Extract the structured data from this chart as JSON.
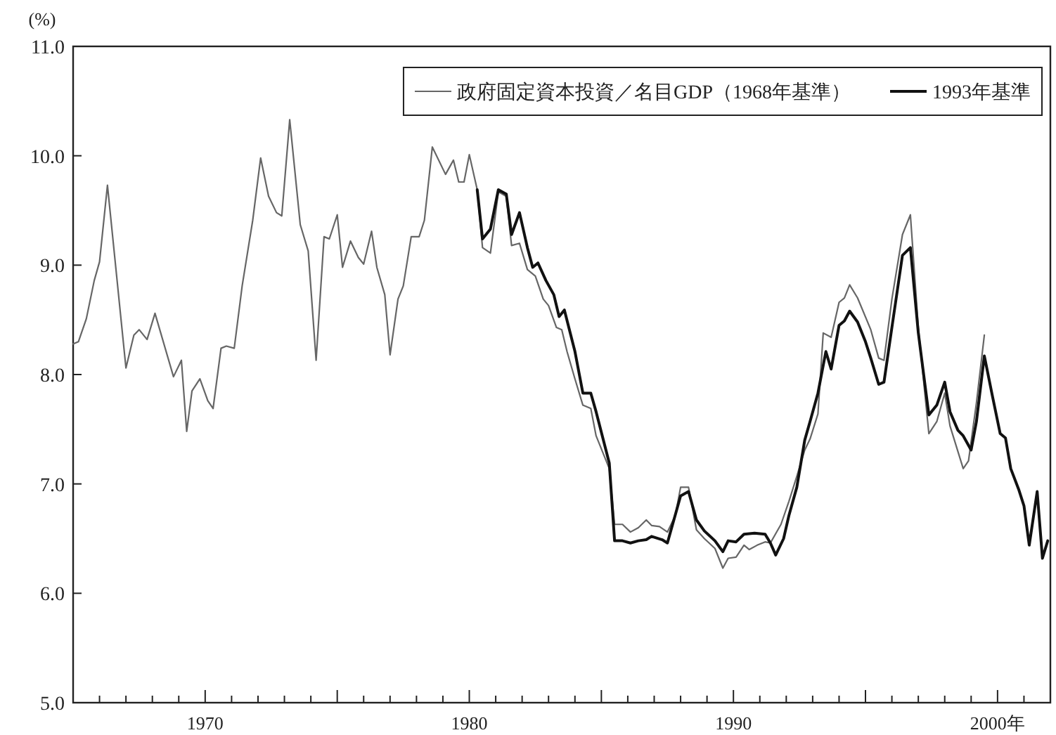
{
  "chart_data": {
    "type": "line",
    "ylabel": "(%)",
    "xlim": [
      1965,
      2002
    ],
    "ylim": [
      5,
      11
    ],
    "xticks": [
      {
        "value": 1966,
        "label": null
      },
      {
        "value": 1967,
        "label": null
      },
      {
        "value": 1968,
        "label": null
      },
      {
        "value": 1969,
        "label": null
      },
      1970,
      {
        "value": 1971,
        "label": null
      },
      {
        "value": 1972,
        "label": null
      },
      {
        "value": 1973,
        "label": null
      },
      {
        "value": 1974,
        "label": null
      },
      {
        "value": 1975,
        "label": null
      },
      {
        "value": 1976,
        "label": null
      },
      {
        "value": 1977,
        "label": null
      },
      {
        "value": 1978,
        "label": null
      },
      {
        "value": 1979,
        "label": null
      },
      1980,
      {
        "value": 1981,
        "label": null
      },
      {
        "value": 1982,
        "label": null
      },
      {
        "value": 1983,
        "label": null
      },
      {
        "value": 1984,
        "label": null
      },
      {
        "value": 1985,
        "label": null
      },
      {
        "value": 1986,
        "label": null
      },
      {
        "value": 1987,
        "label": null
      },
      {
        "value": 1988,
        "label": null
      },
      {
        "value": 1989,
        "label": null
      },
      1990,
      {
        "value": 1991,
        "label": null
      },
      {
        "value": 1992,
        "label": null
      },
      {
        "value": 1993,
        "label": null
      },
      {
        "value": 1994,
        "label": null
      },
      {
        "value": 1995,
        "label": null
      },
      {
        "value": 1996,
        "label": null
      },
      {
        "value": 1997,
        "label": null
      },
      {
        "value": 1998,
        "label": null
      },
      {
        "value": 1999,
        "label": null
      },
      {
        "value": 2000,
        "label": "2000年"
      },
      {
        "value": 2001,
        "label": null
      }
    ],
    "yticks": [
      {
        "value": 5,
        "label": "5.0"
      },
      {
        "value": 6,
        "label": "6.0"
      },
      {
        "value": 7,
        "label": "7.0"
      },
      {
        "value": 8,
        "label": "8.0"
      },
      {
        "value": 9,
        "label": "9.0"
      },
      {
        "value": 10,
        "label": "10.0"
      },
      {
        "value": 11,
        "label": "11.0"
      }
    ],
    "legend": "top right",
    "grid": false,
    "marker": "none",
    "line_style": "solid",
    "series": [
      {
        "name": "政府固定資本投資／名目GDP（1968年基準）",
        "color": "#666666",
        "x": [
          1965.0,
          1965.2,
          1965.5,
          1965.8,
          1966.0,
          1966.3,
          1967.0,
          1967.3,
          1967.5,
          1967.8,
          1968.1,
          1968.8,
          1969.1,
          1969.3,
          1969.5,
          1969.8,
          1970.1,
          1970.3,
          1970.6,
          1970.8,
          1971.1,
          1971.4,
          1971.8,
          1972.1,
          1972.4,
          1972.7,
          1972.9,
          1973.2,
          1973.6,
          1973.9,
          1974.2,
          1974.5,
          1974.7,
          1975.0,
          1975.2,
          1975.5,
          1975.8,
          1976.0,
          1976.3,
          1976.5,
          1976.8,
          1977.0,
          1977.3,
          1977.5,
          1977.8,
          1978.1,
          1978.3,
          1978.6,
          1979.1,
          1979.4,
          1979.6,
          1979.8,
          1980.0,
          1980.3,
          1980.5,
          1980.8,
          1981.1,
          1981.4,
          1981.6,
          1981.9,
          1982.2,
          1982.5,
          1982.8,
          1983.0,
          1983.3,
          1983.5,
          1983.7,
          1984.0,
          1984.3,
          1984.6,
          1984.8,
          1985.3,
          1985.5,
          1985.8,
          1986.1,
          1986.4,
          1986.7,
          1986.9,
          1987.2,
          1987.5,
          1987.8,
          1988.0,
          1988.3,
          1988.6,
          1988.9,
          1989.3,
          1989.6,
          1989.8,
          1990.1,
          1990.4,
          1990.6,
          1990.9,
          1991.2,
          1991.4,
          1991.8,
          1992.1,
          1992.4,
          1992.7,
          1992.9,
          1993.2,
          1993.4,
          1993.7,
          1994.0,
          1994.2,
          1994.4,
          1994.7,
          1995.2,
          1995.5,
          1995.7,
          1996.0,
          1996.4,
          1996.7,
          1997.0,
          1997.4,
          1997.7,
          1998.0,
          1998.2,
          1998.7,
          1998.9,
          1999.2,
          1999.5
        ],
        "values": [
          8.28,
          8.3,
          8.51,
          8.86,
          9.03,
          9.73,
          8.06,
          8.36,
          8.41,
          8.32,
          8.56,
          7.98,
          8.13,
          7.48,
          7.85,
          7.96,
          7.76,
          7.69,
          8.24,
          8.26,
          8.24,
          8.81,
          9.41,
          9.98,
          9.63,
          9.48,
          9.45,
          10.33,
          9.37,
          9.13,
          8.13,
          9.26,
          9.24,
          9.46,
          8.98,
          9.22,
          9.07,
          9.01,
          9.31,
          8.98,
          8.73,
          8.18,
          8.69,
          8.81,
          9.26,
          9.26,
          9.41,
          10.08,
          9.83,
          9.96,
          9.76,
          9.76,
          10.01,
          9.69,
          9.16,
          9.11,
          9.67,
          9.63,
          9.18,
          9.2,
          8.96,
          8.9,
          8.69,
          8.63,
          8.43,
          8.41,
          8.21,
          7.96,
          7.72,
          7.69,
          7.44,
          7.14,
          6.63,
          6.63,
          6.56,
          6.6,
          6.67,
          6.62,
          6.61,
          6.56,
          6.71,
          6.97,
          6.97,
          6.58,
          6.5,
          6.41,
          6.23,
          6.32,
          6.33,
          6.44,
          6.4,
          6.44,
          6.47,
          6.46,
          6.63,
          6.84,
          7.07,
          7.31,
          7.41,
          7.64,
          8.38,
          8.34,
          8.66,
          8.7,
          8.82,
          8.7,
          8.41,
          8.15,
          8.13,
          8.69,
          9.28,
          9.46,
          8.43,
          7.46,
          7.57,
          7.83,
          7.53,
          7.14,
          7.21,
          7.74,
          8.36
        ]
      },
      {
        "name": "1993年基準",
        "color": "#111111",
        "x": [
          1980.3,
          1980.5,
          1980.8,
          1981.1,
          1981.4,
          1981.6,
          1981.9,
          1982.2,
          1982.4,
          1982.6,
          1982.9,
          1983.2,
          1983.4,
          1983.6,
          1984.0,
          1984.3,
          1984.6,
          1984.8,
          1985.3,
          1985.5,
          1985.8,
          1986.1,
          1986.4,
          1986.7,
          1986.9,
          1987.3,
          1987.5,
          1988.0,
          1988.3,
          1988.6,
          1988.9,
          1989.3,
          1989.6,
          1989.8,
          1990.1,
          1990.4,
          1990.8,
          1991.2,
          1991.4,
          1991.6,
          1991.9,
          1992.1,
          1992.4,
          1992.7,
          1992.9,
          1993.2,
          1993.5,
          1993.7,
          1994.0,
          1994.2,
          1994.4,
          1994.7,
          1995.0,
          1995.2,
          1995.5,
          1995.7,
          1996.0,
          1996.4,
          1996.7,
          1997.0,
          1997.4,
          1997.7,
          1998.0,
          1998.2,
          1998.5,
          1998.7,
          1999.0,
          1999.2,
          1999.5,
          1999.8,
          2000.1,
          2000.3,
          2000.5,
          2000.8,
          2001.0,
          2001.2,
          2001.5,
          2001.7,
          2001.9
        ],
        "values": [
          9.69,
          9.24,
          9.33,
          9.69,
          9.65,
          9.28,
          9.48,
          9.16,
          8.98,
          9.02,
          8.86,
          8.73,
          8.53,
          8.59,
          8.21,
          7.83,
          7.83,
          7.66,
          7.19,
          6.48,
          6.48,
          6.46,
          6.48,
          6.49,
          6.52,
          6.49,
          6.46,
          6.89,
          6.93,
          6.67,
          6.57,
          6.48,
          6.38,
          6.48,
          6.47,
          6.54,
          6.55,
          6.54,
          6.46,
          6.35,
          6.5,
          6.71,
          6.97,
          7.4,
          7.57,
          7.83,
          8.21,
          8.05,
          8.45,
          8.49,
          8.58,
          8.48,
          8.3,
          8.15,
          7.91,
          7.93,
          8.43,
          9.09,
          9.16,
          8.38,
          7.63,
          7.72,
          7.93,
          7.66,
          7.49,
          7.44,
          7.31,
          7.57,
          8.17,
          7.81,
          7.46,
          7.42,
          7.14,
          6.95,
          6.8,
          6.44,
          6.93,
          6.32,
          6.48
        ]
      }
    ]
  }
}
